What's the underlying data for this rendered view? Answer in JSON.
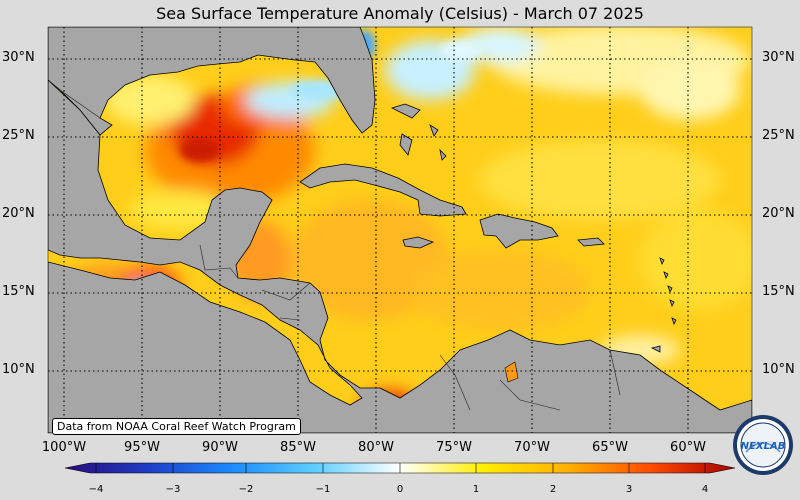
{
  "title": "Sea Surface Temperature Anomaly (Celsius) - March 07 2025",
  "credit": "Data from NOAA Coral Reef Watch Program",
  "logo_text": "NEXLAB",
  "lat_labels": [
    "30°N",
    "25°N",
    "20°N",
    "15°N",
    "10°N"
  ],
  "lon_labels": [
    "100°W",
    "95°W",
    "90°W",
    "85°W",
    "80°W",
    "75°W",
    "70°W",
    "65°W",
    "60°W"
  ],
  "colorbar": {
    "ticks": [
      "−4",
      "−3",
      "−2",
      "−1",
      "0",
      "1",
      "2",
      "3",
      "4"
    ],
    "stops": [
      "#2a0a7a",
      "#1e3ec8",
      "#1a8cff",
      "#5fd0ff",
      "#ffffff",
      "#ffee00",
      "#ffb000",
      "#ff4a00",
      "#a80000"
    ]
  },
  "colors": {
    "land": "#a6a6a6",
    "background": "#dcdcdc",
    "anomaly_hot": "#e02000",
    "anomaly_warm": "#ffc000",
    "anomaly_mild": "#ffee40",
    "anomaly_cool": "#c8f0ff"
  }
}
